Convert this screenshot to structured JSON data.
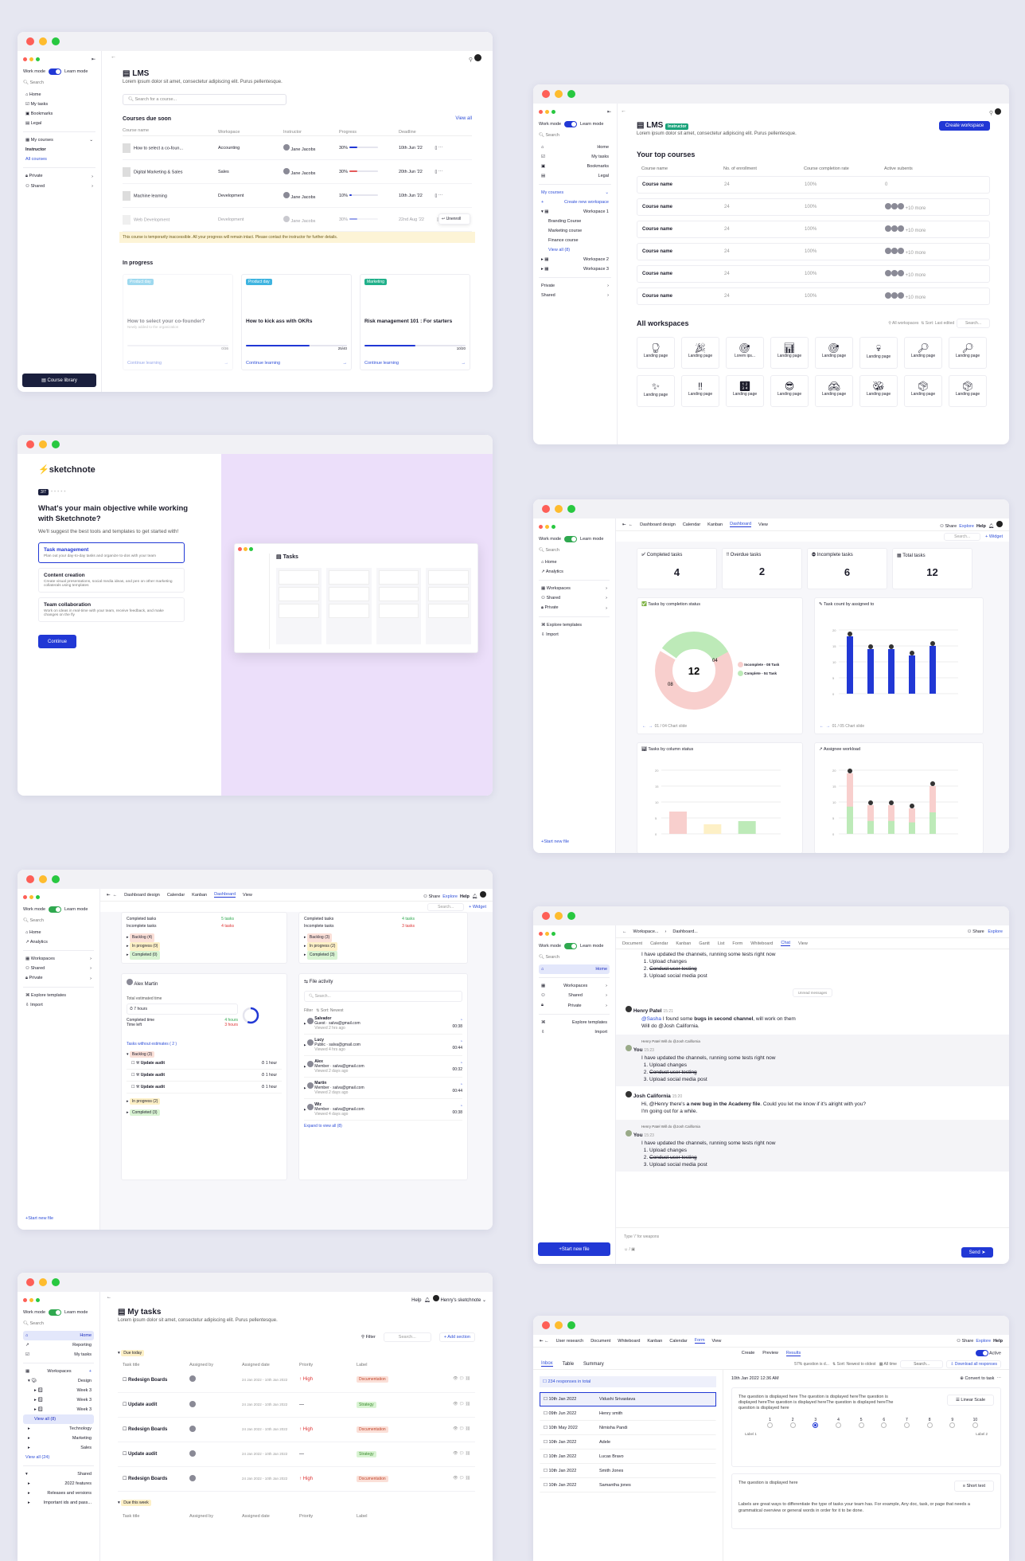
{
  "lms": {
    "title": "LMS",
    "subtitle": "Lorem ipsum dolor sit amet, consectetur adipiscing elit. Purus pellentesque.",
    "search": "Search for a course...",
    "due_title": "Courses due soon",
    "view_all": "View all",
    "cols": [
      "Course name",
      "Workspace",
      "Instructor",
      "Progress",
      "Deadline"
    ],
    "rows": [
      {
        "name": "How to select a co-foun...",
        "ws": "Accounting",
        "ins": "Jane Jacobs",
        "pct": "30%",
        "p": 0.3,
        "dl": "10th Jun '22"
      },
      {
        "name": "Digital Marketing & Sales",
        "ws": "Sales",
        "ins": "Jane Jacobs",
        "pct": "30%",
        "p": 0.3,
        "dl": "20th Jun '22"
      },
      {
        "name": "Machine learning",
        "ws": "Development",
        "ins": "Jane Jacobs",
        "pct": "10%",
        "p": 0.1,
        "dl": "10th Jun '22"
      },
      {
        "name": "Web Development",
        "ws": "Development",
        "ins": "Jane Jacobs",
        "pct": "30%",
        "p": 0.3,
        "dl": "22nd Aug '22"
      }
    ],
    "unenroll": "Unenroll",
    "warn": "This course is temporarily inaccessible. All your progress will remain intact. Please contact the instructor for further details.",
    "inprog": "In progress",
    "cards": [
      {
        "tag": "Product day",
        "title": "How to select your co-founder?",
        "note": "Newly added to the organization",
        "count": "0/36",
        "cta": "Continue learning"
      },
      {
        "tag": "Product day",
        "title": "How to kick ass with OKRs",
        "note": "",
        "count": "25/40",
        "cta": "Continue learning",
        "p": 0.63
      },
      {
        "tag": "Marketing",
        "title": "Risk management 101 : For starters",
        "note": "",
        "count": "10/20",
        "cta": "Continue learning",
        "p": 0.5
      }
    ],
    "library": "Course library",
    "nav": [
      "Home",
      "My tasks",
      "Bookmarks",
      "Legal"
    ],
    "my_courses": "My courses",
    "instructor": "Instructor",
    "all_courses": "All courses",
    "private": "Private",
    "shared": "Shared"
  },
  "ws": {
    "title": "LMS",
    "badge": "Instructor",
    "subtitle": "Lorem ipsum dolor sit amet, consectetur adipiscing elit. Purus pellentesque.",
    "create": "Create workspace",
    "top": "Your top courses",
    "cols": [
      "Course name",
      "No. of enrollment",
      "Course completion rate",
      "Active subents"
    ],
    "rows": [
      {
        "n": "Course name",
        "e": "24",
        "c": "100%",
        "a": "0"
      },
      {
        "n": "Course name",
        "e": "24",
        "c": "100%",
        "a": "+10 more"
      },
      {
        "n": "Course name",
        "e": "24",
        "c": "100%",
        "a": "+10 more"
      },
      {
        "n": "Course name",
        "e": "24",
        "c": "100%",
        "a": "+10 more"
      },
      {
        "n": "Course name",
        "e": "24",
        "c": "100%",
        "a": "+10 more"
      },
      {
        "n": "Course name",
        "e": "24",
        "c": "100%",
        "a": "+10 more"
      }
    ],
    "allws": "All workspaces",
    "filter": "All workspaces",
    "sort": "Sort: Last edited",
    "search": "Search...",
    "tile": "Landing page",
    "tile2": "Lorem ips...",
    "nav": [
      "Home",
      "My tasks",
      "Bookmarks",
      "Legal"
    ],
    "my_courses": "My courses",
    "create_ws": "Create new workspace",
    "w1": "Workspace 1",
    "subs": [
      "Branding Course",
      "Marketing course",
      "Finance course"
    ],
    "viewall": "View all (8)",
    "w2": "Workspace 2",
    "w3": "Workspace 3",
    "private": "Private",
    "shared": "Shared"
  },
  "sk": {
    "brand": "sketchnote",
    "step": "3/7",
    "q": "What's your main objective while working with Sketchnote?",
    "hint": "We'll suggest the best tools and templates to get started with!",
    "opts": [
      {
        "t": "Task management",
        "d": "Plan out your day-to-day tasks and organize to-dos with your team"
      },
      {
        "t": "Content creation",
        "d": "Create visual presentations, social media ideas, and pen on other marketing collaterals using templates"
      },
      {
        "t": "Team collaboration",
        "d": "Work on ideas in real-time with your team, receive feedback, and make changes on the fly"
      }
    ],
    "cont": "Continue",
    "prev": "Tasks"
  },
  "dash": {
    "tabs": [
      "Dashboard design",
      "Calendar",
      "Kanban",
      "Dashboard",
      "View"
    ],
    "share": "Share",
    "explore": "Explore",
    "help": "Help",
    "widget": "Widget",
    "search": "Search...",
    "stats": [
      {
        "l": "Completed tasks",
        "v": "4"
      },
      {
        "l": "Overdue tasks",
        "v": "2"
      },
      {
        "l": "Incomplete tasks",
        "v": "6"
      },
      {
        "l": "Total tasks",
        "v": "12"
      }
    ],
    "pie_t": "Tasks by completion status",
    "pie_total": "12",
    "pie_a": "08",
    "pie_b": "04",
    "leg": [
      "Incomplete - 08 Task",
      "Complete - 04 Task"
    ],
    "bar_t": "Task count by assigned to",
    "nav_a": "01 / 04 Chart slide",
    "nav_b": "01 / 05 Chart slide",
    "col_t": "Tasks by column status",
    "wl_t": "Assignee workload",
    "nav": [
      "Home",
      "Analytics",
      "Workspaces",
      "Shared",
      "Private",
      "Explore templates",
      "Import"
    ],
    "start": "Start new file"
  },
  "chart_data": [
    {
      "type": "pie",
      "title": "Tasks by completion status",
      "categories": [
        "Incomplete",
        "Complete"
      ],
      "values": [
        8,
        4
      ]
    },
    {
      "type": "bar",
      "title": "Task count by assigned to",
      "categories": [
        "A",
        "B",
        "C",
        "D",
        "E"
      ],
      "values": [
        18,
        14,
        14,
        12,
        15
      ],
      "ylim": [
        0,
        20
      ]
    },
    {
      "type": "bar",
      "title": "Tasks by column status",
      "categories": [
        "Backlog",
        "In progress",
        "Completed"
      ],
      "values": [
        7,
        3,
        4
      ],
      "ylim": [
        0,
        20
      ]
    },
    {
      "type": "bar",
      "title": "Assignee workload",
      "series": [
        {
          "name": "",
          "values": [
            19,
            9,
            9,
            8,
            15
          ]
        }
      ],
      "categories": [
        "A",
        "B",
        "C",
        "D",
        "E"
      ],
      "ylim": [
        0,
        20
      ]
    }
  ],
  "d2": {
    "comp": "Completed tasks",
    "inc": "Incomplete tasks",
    "c1": "5 tasks",
    "i1": "4 tasks",
    "c2": "4 tasks",
    "i2": "3 tasks",
    "backlog": "Backlog (4)",
    "inprog": "In progress (0)",
    "completed": "Completed (0)",
    "backlog3": "Backlog (3)",
    "inprog2": "In progress (2)",
    "completed3": "Completed (3)",
    "person": "Alex Martin",
    "est": "Total estimated time",
    "hours": "7 hours",
    "comptime": "Completed time",
    "ct": "4 hours",
    "left": "Time left",
    "tl": "3 hours",
    "without": "Tasks without estimates ( 2 )",
    "tasks": [
      "Update audit",
      "Update audit",
      "Update audit"
    ],
    "hr": "1 hour",
    "file": "File activity",
    "search": "Search...",
    "filter": "Filter",
    "sortn": "Sort: Newest",
    "acts": [
      {
        "n": "Salvador",
        "r": "Guest",
        "e": "salva@gmail.com",
        "t": "Viewed 2 hrs ago",
        "d": "00:38"
      },
      {
        "n": "Lucy",
        "r": "Public",
        "e": "salva@gmail.com",
        "t": "Viewed 4 hrs ago",
        "d": "00:44"
      },
      {
        "n": "Alex",
        "r": "Member",
        "e": "salva@gmail.com",
        "t": "Viewed 2 days ago",
        "d": "00:32"
      },
      {
        "n": "Martin",
        "r": "Member",
        "e": "salva@gmail.com",
        "t": "Viewed 2 days ago",
        "d": "00:44"
      },
      {
        "n": "Wiz",
        "r": "Member",
        "e": "salva@gmail.com",
        "t": "Viewed 4 days ago",
        "d": "00:38"
      }
    ],
    "expand": "Expand to view all (8)"
  },
  "chat": {
    "crumbs": [
      "Workspace...",
      "Dashboard..."
    ],
    "tabs": [
      "Document",
      "Calendar",
      "Kanban",
      "Gantt",
      "List",
      "Form",
      "Whiteboard",
      "Chat",
      "View"
    ],
    "l1": "I have updated the channels, running some tests right now",
    "items": [
      "Upload changes",
      "Conduct user testing",
      "Upload social media post"
    ],
    "divider": "Unread messages",
    "u1": "Henry Patel",
    "t1": "15:21",
    "m1a": "@Sasha",
    "m1b": " I found some ",
    "m1c": "bugs in second channel",
    "m1d": ", will work on them",
    "m1e": "Will do @Josh California.",
    "you": "You",
    "ty": "15:23",
    "reply": "Henry Patel Will do @Josh California",
    "u2": "Josh California",
    "t2": "15:20",
    "m2a": "Hi, @Henry there's ",
    "m2b": "a new bug in the Academy file",
    "m2c": ". Could you let me know if it's alright with you?",
    "m2d": "I'm going out for a while.",
    "input": "Type '/' for weapons",
    "send": "Send",
    "start": "Start new file"
  },
  "mt": {
    "title": "My tasks",
    "subtitle": "Lorem ipsum dolor sit amet, consectetur adipiscing elit. Purus pellentesque.",
    "filter": "Filter",
    "search": "Search...",
    "add": "Add section",
    "help": "Help",
    "user": "Henry's sketchnote",
    "due": "Due today",
    "week": "Due this week",
    "cols": [
      "Task title",
      "Assigned by",
      "Assigned date",
      "Priority",
      "Label"
    ],
    "rows": [
      {
        "t": "Redesign Boards",
        "d": "24 Jan 2022 - 10th Jan 2022",
        "p": "High",
        "l": "Documentation",
        "lc": "#fbe0d8",
        "tc": "#c0452b"
      },
      {
        "t": "Update audit",
        "d": "24 Jan 2022 - 10th Jan 2022",
        "p": "—",
        "l": "Strategy",
        "lc": "#d9f4d3",
        "tc": "#3a8a2c"
      },
      {
        "t": "Redesign Boards",
        "d": "24 Jan 2022 - 10th Jan 2022",
        "p": "High",
        "l": "Documentation",
        "lc": "#fbe0d8",
        "tc": "#c0452b"
      },
      {
        "t": "Update audit",
        "d": "24 Jan 2022 - 10th Jan 2022",
        "p": "—",
        "l": "Strategy",
        "lc": "#d9f4d3",
        "tc": "#3a8a2c"
      },
      {
        "t": "Redesign Boards",
        "d": "24 Jan 2022 - 10th Jan 2022",
        "p": "High",
        "l": "Documentation",
        "lc": "#fbe0d8",
        "tc": "#c0452b"
      }
    ],
    "nav": [
      "Home",
      "Reporting",
      "My tasks"
    ],
    "wsh": "Workspaces",
    "design": "Design",
    "weeks": [
      "Week 3",
      "Week 3",
      "Week 3"
    ],
    "viewall": "View all (8)",
    "others": [
      "Technology",
      "Marketing",
      "Sales"
    ],
    "va2": "View all (24)",
    "shared": "Shared",
    "sh": [
      "2022 features",
      "Releases and versions",
      "Important ids and pass..."
    ]
  },
  "form": {
    "crumbs": [
      "User research",
      "Document",
      "Whiteboard",
      "Kanban",
      "Calendar",
      "Form",
      "View"
    ],
    "sub": [
      "Create",
      "Preview",
      "Results"
    ],
    "active": "Active",
    "tabs": [
      "Inbox",
      "Table",
      "Summary"
    ],
    "q": "57% question is d...",
    "sort": "Sort: Newest to oldest",
    "all": "All time",
    "search": "Search...",
    "dl": "Download all responses",
    "resp": "234 responses in total",
    "list": [
      {
        "d": "10th Jan 2022",
        "n": "Vidushi Srivastava"
      },
      {
        "d": "09th Jun 2022",
        "n": "Henry smith"
      },
      {
        "d": "10th May 2022",
        "n": "Nimisha Pandi"
      },
      {
        "d": "10th Jan 2022",
        "n": "Adele"
      },
      {
        "d": "10th Jan 2022",
        "n": "Lucas Bravo"
      },
      {
        "d": "10th Jan 2022",
        "n": "Smith Jones"
      },
      {
        "d": "10th Jan 2022",
        "n": "Samantha jones"
      }
    ],
    "det_date": "10th Jan 2022  12:36 AM",
    "convert": "Convert to task",
    "qtext": "The question is displayed here The question is displayed hereThe question is displayed hereThe question is displayed hereThe question is displayed hereThe question is displayed here",
    "scale": "Linear Scale",
    "l1": "Label 1",
    "l2": "Label 2",
    "q2": "The question is displayed here",
    "short": "Short text",
    "ans": "Labels are great ways to differentiate the type of tasks your team has. For example, Any doc, task, or page that needs a grammatical overview or general words in order for it to be done."
  }
}
